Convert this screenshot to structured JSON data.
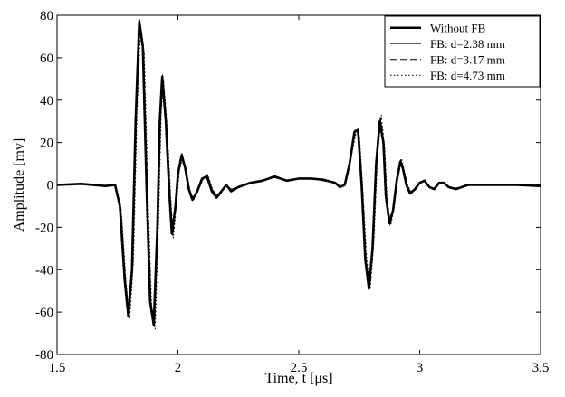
{
  "chart_data": {
    "type": "line",
    "xlabel": "Time,  t [μs]",
    "ylabel": "Amplitude [mv]",
    "xlim": [
      1.5,
      3.5
    ],
    "ylim": [
      -80,
      80
    ],
    "x_ticks": [
      1.5,
      2,
      2.5,
      3,
      3.5
    ],
    "y_ticks": [
      -80,
      -60,
      -40,
      -20,
      0,
      20,
      40,
      60,
      80
    ],
    "x_tick_labels": [
      "1.5",
      "2",
      "2.5",
      "3",
      "3.5"
    ],
    "y_tick_labels": [
      "-80",
      "-60",
      "-40",
      "-20",
      "0",
      "20",
      "40",
      "60",
      "80"
    ],
    "grid": false,
    "legend_position": "top-right",
    "colors": {
      "line": "#000000",
      "axes": "#000000",
      "background": "#ffffff"
    },
    "series": [
      {
        "name": "Without FB",
        "style": "solid-thick",
        "points": [
          [
            1.5,
            0
          ],
          [
            1.6,
            0.5
          ],
          [
            1.7,
            -0.5
          ],
          [
            1.74,
            0
          ],
          [
            1.76,
            -10
          ],
          [
            1.78,
            -45
          ],
          [
            1.795,
            -62
          ],
          [
            1.81,
            -40
          ],
          [
            1.825,
            30
          ],
          [
            1.84,
            77
          ],
          [
            1.855,
            65
          ],
          [
            1.87,
            0
          ],
          [
            1.885,
            -55
          ],
          [
            1.9,
            -66
          ],
          [
            1.915,
            -20
          ],
          [
            1.925,
            30
          ],
          [
            1.935,
            51
          ],
          [
            1.95,
            30
          ],
          [
            1.965,
            -5
          ],
          [
            1.975,
            -23
          ],
          [
            1.99,
            -10
          ],
          [
            2.0,
            5
          ],
          [
            2.015,
            14
          ],
          [
            2.03,
            8
          ],
          [
            2.045,
            -2
          ],
          [
            2.06,
            -7
          ],
          [
            2.08,
            -3
          ],
          [
            2.1,
            3
          ],
          [
            2.12,
            4
          ],
          [
            2.14,
            -3
          ],
          [
            2.16,
            -6
          ],
          [
            2.18,
            -3
          ],
          [
            2.2,
            0
          ],
          [
            2.22,
            -3
          ],
          [
            2.25,
            -1
          ],
          [
            2.3,
            1
          ],
          [
            2.35,
            2
          ],
          [
            2.4,
            4
          ],
          [
            2.45,
            2
          ],
          [
            2.5,
            3
          ],
          [
            2.55,
            3
          ],
          [
            2.6,
            2.5
          ],
          [
            2.65,
            1
          ],
          [
            2.67,
            -1
          ],
          [
            2.69,
            0
          ],
          [
            2.71,
            10
          ],
          [
            2.73,
            25
          ],
          [
            2.745,
            26
          ],
          [
            2.76,
            0
          ],
          [
            2.775,
            -35
          ],
          [
            2.79,
            -49
          ],
          [
            2.805,
            -30
          ],
          [
            2.82,
            10
          ],
          [
            2.835,
            30
          ],
          [
            2.85,
            20
          ],
          [
            2.86,
            -5
          ],
          [
            2.875,
            -18
          ],
          [
            2.89,
            -12
          ],
          [
            2.905,
            2
          ],
          [
            2.92,
            11
          ],
          [
            2.93,
            8
          ],
          [
            2.945,
            0
          ],
          [
            2.96,
            -4
          ],
          [
            2.98,
            -2
          ],
          [
            3.0,
            1
          ],
          [
            3.02,
            2
          ],
          [
            3.04,
            -1
          ],
          [
            3.06,
            -2
          ],
          [
            3.08,
            1
          ],
          [
            3.1,
            1
          ],
          [
            3.12,
            -1
          ],
          [
            3.15,
            -2
          ],
          [
            3.2,
            0
          ],
          [
            3.3,
            0
          ],
          [
            3.4,
            0
          ],
          [
            3.5,
            -0.5
          ]
        ]
      },
      {
        "name": "FB: d=2.38 mm",
        "style": "solid-thin",
        "points": [
          [
            1.5,
            0
          ],
          [
            1.6,
            0.3
          ],
          [
            1.7,
            -0.3
          ],
          [
            1.74,
            0.5
          ],
          [
            1.762,
            -9
          ],
          [
            1.782,
            -44
          ],
          [
            1.797,
            -60
          ],
          [
            1.812,
            -38
          ],
          [
            1.827,
            31
          ],
          [
            1.842,
            78
          ],
          [
            1.857,
            66
          ],
          [
            1.872,
            2
          ],
          [
            1.887,
            -54
          ],
          [
            1.902,
            -67
          ],
          [
            1.917,
            -18
          ],
          [
            1.927,
            32
          ],
          [
            1.937,
            52
          ],
          [
            1.952,
            31
          ],
          [
            1.967,
            -4
          ],
          [
            1.977,
            -22
          ],
          [
            1.992,
            -9
          ],
          [
            2.002,
            6
          ],
          [
            2.017,
            15
          ],
          [
            2.032,
            8
          ],
          [
            2.047,
            -2
          ],
          [
            2.062,
            -6
          ],
          [
            2.082,
            -2
          ],
          [
            2.102,
            3
          ],
          [
            2.122,
            5
          ],
          [
            2.142,
            -2
          ],
          [
            2.162,
            -5
          ],
          [
            2.182,
            -2
          ],
          [
            2.2,
            0
          ],
          [
            2.22,
            -2
          ],
          [
            2.25,
            -1
          ],
          [
            2.3,
            1
          ],
          [
            2.35,
            2
          ],
          [
            2.4,
            3.5
          ],
          [
            2.45,
            2
          ],
          [
            2.5,
            3
          ],
          [
            2.55,
            3
          ],
          [
            2.6,
            2
          ],
          [
            2.65,
            1
          ],
          [
            2.67,
            -1
          ],
          [
            2.69,
            0
          ],
          [
            2.712,
            11
          ],
          [
            2.732,
            26
          ],
          [
            2.747,
            25
          ],
          [
            2.762,
            -2
          ],
          [
            2.777,
            -37
          ],
          [
            2.792,
            -47
          ],
          [
            2.807,
            -28
          ],
          [
            2.822,
            12
          ],
          [
            2.837,
            32
          ],
          [
            2.852,
            19
          ],
          [
            2.862,
            -6
          ],
          [
            2.877,
            -19
          ],
          [
            2.892,
            -11
          ],
          [
            2.907,
            3
          ],
          [
            2.922,
            12
          ],
          [
            2.932,
            8
          ],
          [
            2.947,
            0
          ],
          [
            2.962,
            -4
          ],
          [
            2.982,
            -2
          ],
          [
            3.0,
            1
          ],
          [
            3.02,
            2
          ],
          [
            3.04,
            -1
          ],
          [
            3.06,
            -2
          ],
          [
            3.08,
            1
          ],
          [
            3.1,
            1
          ],
          [
            3.12,
            -1
          ],
          [
            3.15,
            -1.5
          ],
          [
            3.2,
            0
          ],
          [
            3.3,
            0
          ],
          [
            3.4,
            0
          ],
          [
            3.5,
            -0.5
          ]
        ]
      },
      {
        "name": "FB: d=3.17 mm",
        "style": "dashed",
        "points": [
          [
            1.5,
            0
          ],
          [
            1.6,
            0.4
          ],
          [
            1.7,
            -0.4
          ],
          [
            1.74,
            0.3
          ],
          [
            1.764,
            -11
          ],
          [
            1.784,
            -46
          ],
          [
            1.799,
            -61
          ],
          [
            1.814,
            -37
          ],
          [
            1.829,
            33
          ],
          [
            1.844,
            76
          ],
          [
            1.859,
            63
          ],
          [
            1.874,
            -2
          ],
          [
            1.889,
            -56
          ],
          [
            1.904,
            -65
          ],
          [
            1.919,
            -16
          ],
          [
            1.929,
            33
          ],
          [
            1.939,
            50
          ],
          [
            1.954,
            28
          ],
          [
            1.969,
            -6
          ],
          [
            1.979,
            -24
          ],
          [
            1.994,
            -8
          ],
          [
            2.004,
            7
          ],
          [
            2.019,
            14
          ],
          [
            2.034,
            7
          ],
          [
            2.049,
            -3
          ],
          [
            2.064,
            -7
          ],
          [
            2.084,
            -2
          ],
          [
            2.104,
            3
          ],
          [
            2.124,
            4
          ],
          [
            2.144,
            -3
          ],
          [
            2.164,
            -5
          ],
          [
            2.184,
            -2
          ],
          [
            2.2,
            0
          ],
          [
            2.22,
            -2
          ],
          [
            2.25,
            -1
          ],
          [
            2.3,
            1
          ],
          [
            2.35,
            2
          ],
          [
            2.4,
            3.5
          ],
          [
            2.45,
            2
          ],
          [
            2.5,
            3
          ],
          [
            2.55,
            3
          ],
          [
            2.6,
            2
          ],
          [
            2.65,
            1
          ],
          [
            2.67,
            -1
          ],
          [
            2.69,
            0
          ],
          [
            2.714,
            12
          ],
          [
            2.734,
            25
          ],
          [
            2.749,
            24
          ],
          [
            2.764,
            -3
          ],
          [
            2.779,
            -36
          ],
          [
            2.794,
            -48
          ],
          [
            2.809,
            -27
          ],
          [
            2.824,
            13
          ],
          [
            2.839,
            31
          ],
          [
            2.854,
            18
          ],
          [
            2.864,
            -7
          ],
          [
            2.879,
            -18
          ],
          [
            2.894,
            -10
          ],
          [
            2.909,
            3
          ],
          [
            2.924,
            11
          ],
          [
            2.934,
            7
          ],
          [
            2.949,
            0
          ],
          [
            2.964,
            -4
          ],
          [
            2.984,
            -2
          ],
          [
            3.0,
            1
          ],
          [
            3.02,
            2
          ],
          [
            3.04,
            -1
          ],
          [
            3.06,
            -2
          ],
          [
            3.08,
            1
          ],
          [
            3.1,
            1
          ],
          [
            3.12,
            -1
          ],
          [
            3.15,
            -1.5
          ],
          [
            3.2,
            0
          ],
          [
            3.3,
            0
          ],
          [
            3.4,
            0
          ],
          [
            3.5,
            -0.5
          ]
        ]
      },
      {
        "name": "FB: d=4.73 mm",
        "style": "dotted",
        "points": [
          [
            1.5,
            0
          ],
          [
            1.6,
            0.5
          ],
          [
            1.7,
            -0.5
          ],
          [
            1.74,
            0.2
          ],
          [
            1.766,
            -12
          ],
          [
            1.786,
            -47
          ],
          [
            1.801,
            -63
          ],
          [
            1.816,
            -36
          ],
          [
            1.831,
            34
          ],
          [
            1.846,
            75
          ],
          [
            1.861,
            62
          ],
          [
            1.876,
            -3
          ],
          [
            1.891,
            -57
          ],
          [
            1.906,
            -68
          ],
          [
            1.921,
            -15
          ],
          [
            1.931,
            34
          ],
          [
            1.941,
            49
          ],
          [
            1.956,
            27
          ],
          [
            1.971,
            -7
          ],
          [
            1.981,
            -25
          ],
          [
            1.996,
            -7
          ],
          [
            2.006,
            7
          ],
          [
            2.021,
            13
          ],
          [
            2.036,
            6
          ],
          [
            2.051,
            -3
          ],
          [
            2.066,
            -7
          ],
          [
            2.086,
            -2
          ],
          [
            2.106,
            3
          ],
          [
            2.126,
            4
          ],
          [
            2.146,
            -3
          ],
          [
            2.166,
            -6
          ],
          [
            2.186,
            -2
          ],
          [
            2.2,
            0
          ],
          [
            2.22,
            -2
          ],
          [
            2.25,
            -1
          ],
          [
            2.3,
            1
          ],
          [
            2.35,
            2
          ],
          [
            2.4,
            3.5
          ],
          [
            2.45,
            2
          ],
          [
            2.5,
            3
          ],
          [
            2.55,
            3
          ],
          [
            2.6,
            2
          ],
          [
            2.65,
            1
          ],
          [
            2.67,
            -1
          ],
          [
            2.69,
            0
          ],
          [
            2.716,
            13
          ],
          [
            2.736,
            24
          ],
          [
            2.751,
            23
          ],
          [
            2.766,
            -4
          ],
          [
            2.781,
            -35
          ],
          [
            2.796,
            -49
          ],
          [
            2.811,
            -26
          ],
          [
            2.826,
            14
          ],
          [
            2.841,
            33
          ],
          [
            2.856,
            17
          ],
          [
            2.866,
            -8
          ],
          [
            2.881,
            -19
          ],
          [
            2.896,
            -9
          ],
          [
            2.911,
            4
          ],
          [
            2.926,
            12
          ],
          [
            2.936,
            7
          ],
          [
            2.951,
            0
          ],
          [
            2.966,
            -4
          ],
          [
            2.986,
            -2
          ],
          [
            3.0,
            1
          ],
          [
            3.02,
            2
          ],
          [
            3.04,
            -1
          ],
          [
            3.06,
            -2
          ],
          [
            3.08,
            1
          ],
          [
            3.1,
            1
          ],
          [
            3.12,
            -1
          ],
          [
            3.15,
            -1.5
          ],
          [
            3.2,
            0
          ],
          [
            3.3,
            0
          ],
          [
            3.4,
            0
          ],
          [
            3.5,
            -0.5
          ]
        ]
      }
    ]
  }
}
